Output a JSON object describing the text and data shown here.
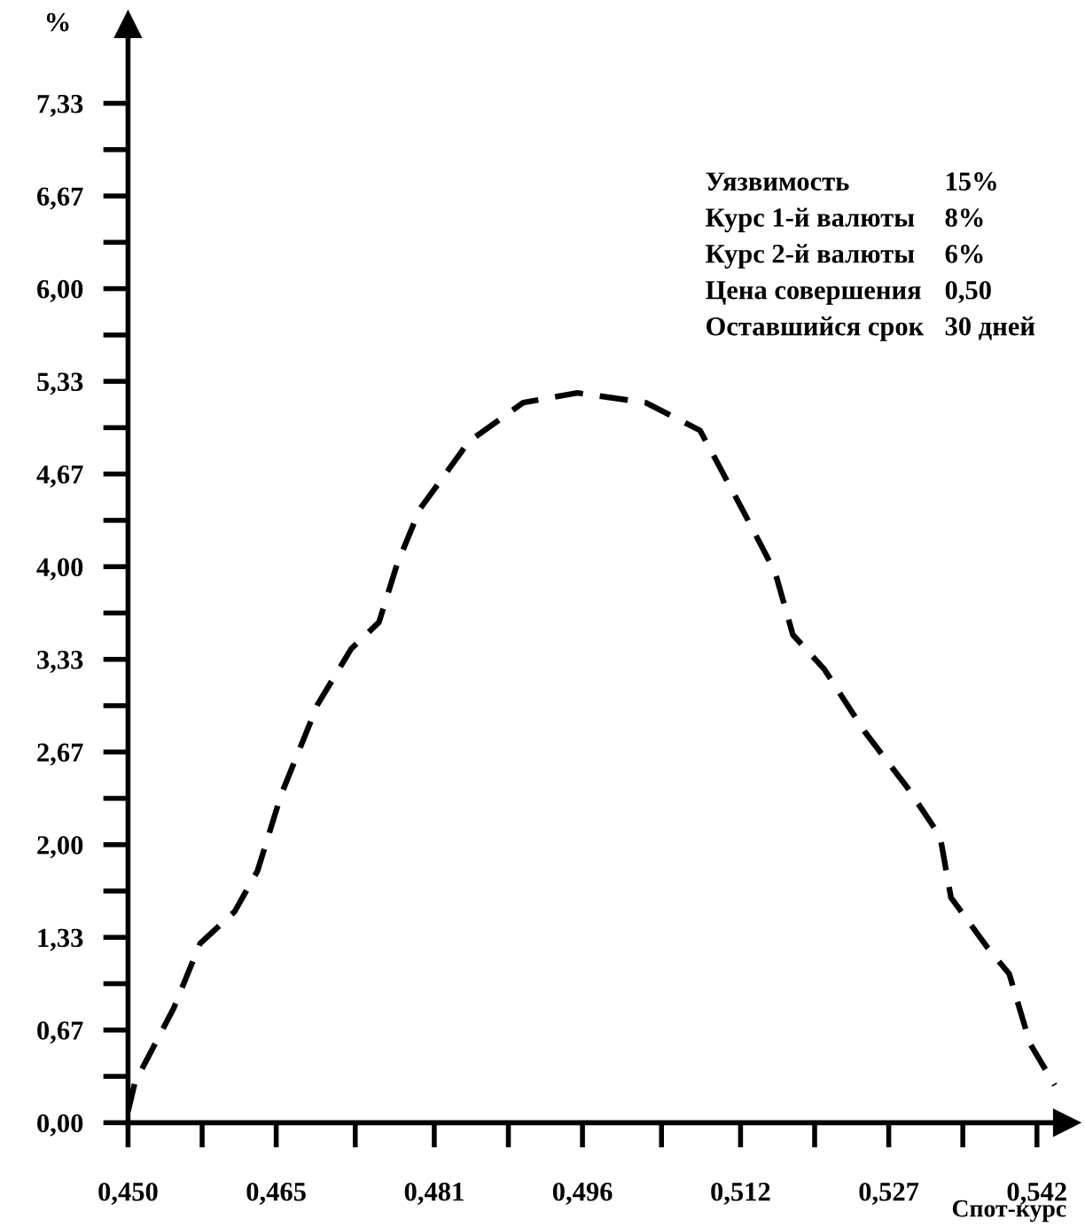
{
  "chart_data": {
    "type": "line",
    "xlabel": "Спот-курс",
    "ylabel": "%",
    "annotations": [
      "Уязвимость",
      "15%",
      "Курс 1-й валюты",
      "8%",
      "Курс 2-й валюты",
      "6%",
      "Цена совершения",
      "0,50",
      "Оставшийся срок",
      "30 дней"
    ],
    "series": [
      {
        "color": "#000000",
        "line_style": "dashed",
        "marker": "none",
        "x": [
          0.45,
          0.4507,
          0.4546,
          0.4573,
          0.4608,
          0.4631,
          0.4655,
          0.4692,
          0.4726,
          0.4754,
          0.4772,
          0.4795,
          0.4845,
          0.49,
          0.4955,
          0.5024,
          0.5079,
          0.5122,
          0.5155,
          0.5173,
          0.5205,
          0.5246,
          0.5289,
          0.5322,
          0.5333,
          0.537,
          0.5392,
          0.5413,
          0.5438
        ],
        "values": [
          0.08,
          0.29,
          0.82,
          1.29,
          1.52,
          1.81,
          2.36,
          3.01,
          3.41,
          3.6,
          4.01,
          4.41,
          4.9,
          5.18,
          5.25,
          5.18,
          4.98,
          4.41,
          3.96,
          3.51,
          3.26,
          2.81,
          2.41,
          2.06,
          1.62,
          1.26,
          1.07,
          0.57,
          0.27
        ]
      }
    ],
    "xlim": [
      0.45,
      0.545
    ],
    "ylim": [
      0,
      7.9
    ],
    "xticks": [
      {
        "value": 0.45,
        "label": "0,450"
      },
      {
        "value": 0.4575,
        "label": null
      },
      {
        "value": 0.465,
        "label": "0,465"
      },
      {
        "value": 0.473,
        "label": null
      },
      {
        "value": 0.481,
        "label": "0,481"
      },
      {
        "value": 0.4885,
        "label": null
      },
      {
        "value": 0.496,
        "label": "0,496"
      },
      {
        "value": 0.504,
        "label": null
      },
      {
        "value": 0.512,
        "label": "0,512"
      },
      {
        "value": 0.5195,
        "label": null
      },
      {
        "value": 0.527,
        "label": "0,527"
      },
      {
        "value": 0.5345,
        "label": null
      },
      {
        "value": 0.542,
        "label": "0,542"
      }
    ],
    "yticks": [
      {
        "value": 0,
        "label": "0,00"
      },
      {
        "value": 0.3333,
        "label": null
      },
      {
        "value": 0.6667,
        "label": "0,67"
      },
      {
        "value": 1.0,
        "label": null
      },
      {
        "value": 1.3333,
        "label": "1,33"
      },
      {
        "value": 1.6667,
        "label": null
      },
      {
        "value": 2.0,
        "label": "2,00"
      },
      {
        "value": 2.3333,
        "label": null
      },
      {
        "value": 2.6667,
        "label": "2,67"
      },
      {
        "value": 3.0,
        "label": null
      },
      {
        "value": 3.3333,
        "label": "3,33"
      },
      {
        "value": 3.6667,
        "label": null
      },
      {
        "value": 4.0,
        "label": "4,00"
      },
      {
        "value": 4.3333,
        "label": null
      },
      {
        "value": 4.6667,
        "label": "4,67"
      },
      {
        "value": 5.0,
        "label": null
      },
      {
        "value": 5.3333,
        "label": "5,33"
      },
      {
        "value": 5.6667,
        "label": null
      },
      {
        "value": 6.0,
        "label": "6,00"
      },
      {
        "value": 6.3333,
        "label": null
      },
      {
        "value": 6.6667,
        "label": "6,67"
      },
      {
        "value": 7.0,
        "label": null
      },
      {
        "value": 7.3333,
        "label": "7,33"
      }
    ],
    "grid": false,
    "legend": false
  }
}
